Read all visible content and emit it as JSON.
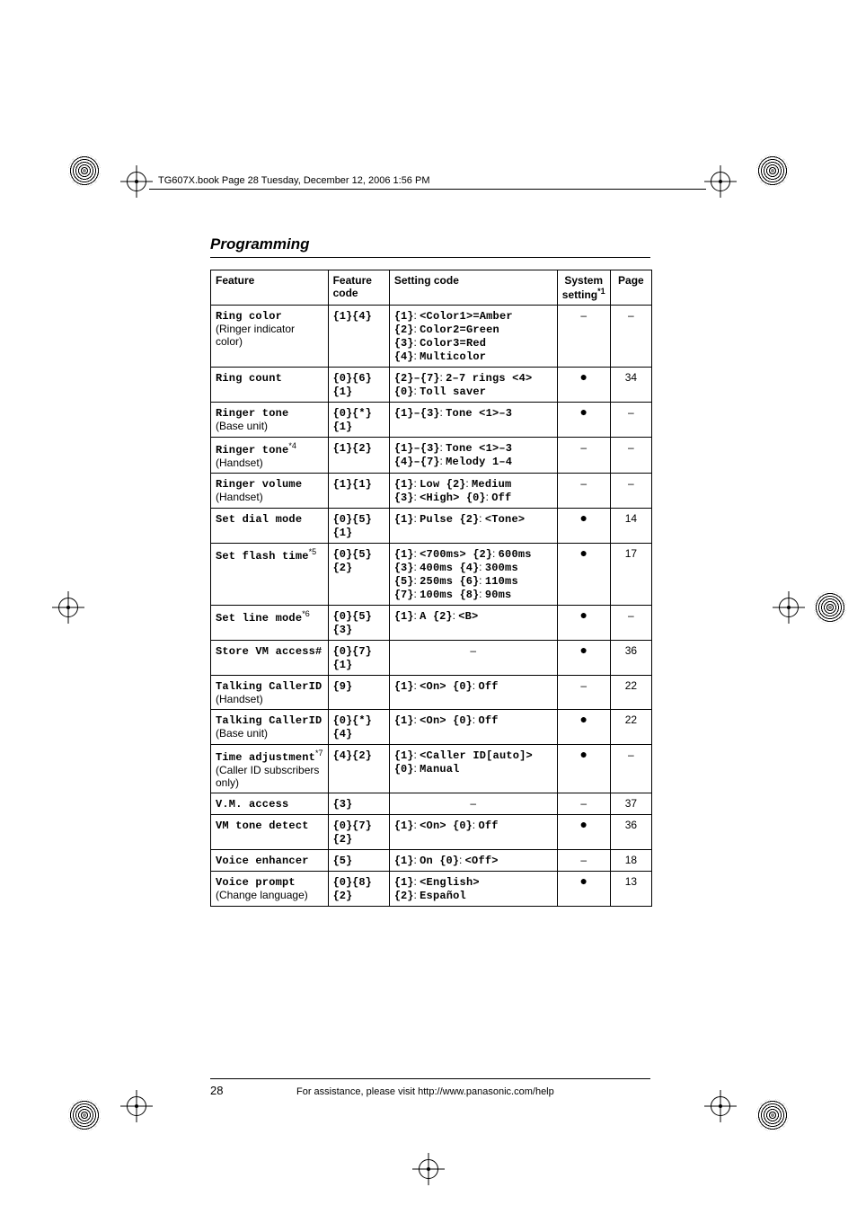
{
  "running_head": "TG607X.book  Page 28  Tuesday, December 12, 2006  1:56 PM",
  "section_title": "Programming",
  "page_number": "28",
  "assist_text": "For assistance, please visit http://www.panasonic.com/help",
  "table": {
    "headers": {
      "feature": "Feature",
      "feature_code": "Feature code",
      "setting_code": "Setting code",
      "system_setting": "System setting",
      "system_setting_sup": "*1",
      "page": "Page"
    },
    "rows": [
      {
        "feature_mono": "Ring color",
        "feature_plain": "(Ringer indicator color)",
        "code": "{1}{4}",
        "setting": "{1}: <Color1>=Amber\n{2}: Color2=Green\n{3}: Color3=Red\n{4}: Multicolor",
        "sys": "–",
        "page": "–"
      },
      {
        "feature_mono": "Ring count",
        "feature_plain": "",
        "code": "{0}{6}{1}",
        "setting": "{2}–{7}: 2–7 rings <4>\n{0}: Toll saver",
        "sys": "●",
        "page": "34"
      },
      {
        "feature_mono": "Ringer tone",
        "feature_plain": "(Base unit)",
        "code": "{0}{*}{1}",
        "setting": "{1}–{3}: Tone <1>–3",
        "sys": "●",
        "page": "–"
      },
      {
        "feature_mono": "Ringer tone",
        "feature_sup": "*4",
        "feature_plain": "(Handset)",
        "code": "{1}{2}",
        "setting": "{1}–{3}: Tone <1>–3\n{4}–{7}: Melody 1–4",
        "sys": "–",
        "page": "–"
      },
      {
        "feature_mono": "Ringer volume",
        "feature_plain": "(Handset)",
        "code": "{1}{1}",
        "setting": "{1}: Low {2}: Medium\n{3}: <High> {0}: Off",
        "sys": "–",
        "page": "–"
      },
      {
        "feature_mono": "Set dial mode",
        "feature_plain": "",
        "code": "{0}{5}{1}",
        "setting": "{1}: Pulse {2}: <Tone>",
        "sys": "●",
        "page": "14"
      },
      {
        "feature_mono": "Set flash time",
        "feature_sup": "*5",
        "feature_plain": "",
        "code": "{0}{5}{2}",
        "setting": "{1}: <700ms> {2}: 600ms\n{3}: 400ms {4}: 300ms\n{5}: 250ms {6}: 110ms\n{7}: 100ms {8}: 90ms",
        "sys": "●",
        "page": "17"
      },
      {
        "feature_mono": "Set line mode",
        "feature_sup": "*6",
        "feature_plain": "",
        "code": "{0}{5}{3}",
        "setting": "{1}: A {2}: <B>",
        "sys": "●",
        "page": "–"
      },
      {
        "feature_mono": "Store VM access#",
        "feature_plain": "",
        "code": "{0}{7}{1}",
        "setting": "–",
        "setting_center": true,
        "sys": "●",
        "page": "36"
      },
      {
        "feature_mono": "Talking CallerID",
        "feature_plain": "(Handset)",
        "code": "{9}",
        "setting": "{1}: <On> {0}: Off",
        "sys": "–",
        "page": "22"
      },
      {
        "feature_mono": "Talking CallerID",
        "feature_plain": "(Base unit)",
        "code": "{0}{*}{4}",
        "setting": "{1}: <On> {0}: Off",
        "sys": "●",
        "page": "22"
      },
      {
        "feature_mono": "Time adjustment",
        "feature_sup": "*7",
        "feature_plain": "(Caller ID subscribers only)",
        "code": "{4}{2}",
        "setting": "{1}: <Caller ID[auto]>\n{0}: Manual",
        "sys": "●",
        "page": "–"
      },
      {
        "feature_mono": "V.M. access",
        "feature_plain": "",
        "code": "{3}",
        "setting": "–",
        "setting_center": true,
        "sys": "–",
        "page": "37"
      },
      {
        "feature_mono": "VM tone detect",
        "feature_plain": "",
        "code": "{0}{7}{2}",
        "setting": "{1}: <On> {0}: Off",
        "sys": "●",
        "page": "36"
      },
      {
        "feature_mono": "Voice enhancer",
        "feature_plain": "",
        "code": "{5}",
        "setting": "{1}: On {0}: <Off>",
        "sys": "–",
        "page": "18"
      },
      {
        "feature_mono": "Voice prompt",
        "feature_plain": "(Change language)",
        "code": "{0}{8}{2}",
        "setting": "{1}: <English>\n{2}: Español",
        "sys": "●",
        "page": "13"
      }
    ]
  },
  "style": {
    "background_color": "#ffffff",
    "text_color": "#000000",
    "border_color": "#000000",
    "body_fontsize": 12,
    "title_fontsize": 17,
    "mono_font": "Courier New"
  }
}
